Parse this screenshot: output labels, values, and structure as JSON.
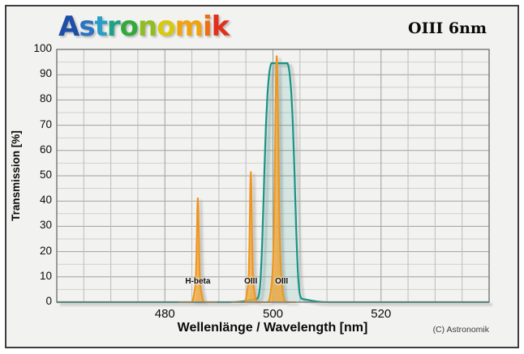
{
  "header": {
    "logo_text": "Astronomik",
    "logo_letters": [
      {
        "ch": "A",
        "color": "#1e4ea6"
      },
      {
        "ch": "s",
        "color": "#2d74c0"
      },
      {
        "ch": "t",
        "color": "#2a9dc8"
      },
      {
        "ch": "r",
        "color": "#1da383"
      },
      {
        "ch": "o",
        "color": "#33a93c"
      },
      {
        "ch": "n",
        "color": "#8fbe22"
      },
      {
        "ch": "o",
        "color": "#d8c90e"
      },
      {
        "ch": "m",
        "color": "#efa30f"
      },
      {
        "ch": "i",
        "color": "#ec6f15"
      },
      {
        "ch": "k",
        "color": "#e0301c"
      }
    ],
    "filter_name": "OIII 6nm"
  },
  "footer": {
    "copyright": "(C) Astronomik"
  },
  "chart_data": {
    "type": "line",
    "title": "OIII 6nm",
    "xlabel": "Wellenlänge / Wavelength [nm]",
    "ylabel": "Transmission [%]",
    "xlim": [
      460,
      540
    ],
    "ylim": [
      0,
      100
    ],
    "x_tick_labels": [
      480,
      500,
      520
    ],
    "y_tick_labels": [
      0,
      10,
      20,
      30,
      40,
      50,
      60,
      70,
      80,
      90,
      100
    ],
    "x_grid_step": 5,
    "y_grid_minor_step": 5,
    "y_grid_major_step": 10,
    "grid": true,
    "legend": "none",
    "series": [
      {
        "name": "filter-transmission-curve",
        "shape": "bandpass",
        "center_nm": 501.2,
        "peak_percent": 94.5,
        "fwhm_nm": 6,
        "width": 3.0,
        "exponent": 6,
        "pedestal": {
          "amp": 1.6,
          "width": 6.0,
          "exponent": 4
        },
        "stroke": "#169486",
        "fill": "rgba(22,148,134,0.13)"
      }
    ],
    "emission_lines": [
      {
        "label": "H-beta",
        "wavelength_nm": 486.1,
        "peak_percent": 41.3,
        "core_width": 0.26,
        "base_amp": 6,
        "base_width": 0.8,
        "label_dx": 0
      },
      {
        "label": "OIII",
        "wavelength_nm": 495.9,
        "peak_percent": 51.7,
        "core_width": 0.26,
        "base_amp": 7,
        "base_width": 0.8,
        "label_dx": 0
      },
      {
        "label": "OIII",
        "wavelength_nm": 500.7,
        "peak_percent": 97.5,
        "core_width": 0.42,
        "base_amp": 12,
        "base_width": 1.1,
        "label_dx": 6
      }
    ],
    "emission_style": {
      "stroke": "#ee9420",
      "fill": "rgba(243,172,62,0.8)"
    },
    "grid_colors": {
      "minor_h": "#d0d0ce",
      "major_h": "#a0a09e",
      "minor_v": "#bcbcba",
      "major_v": "#9e9e9c",
      "frame": "#7c7c7a"
    },
    "shadow_color": "#8f8f8f",
    "plot_bg": "#f2f2f0"
  }
}
